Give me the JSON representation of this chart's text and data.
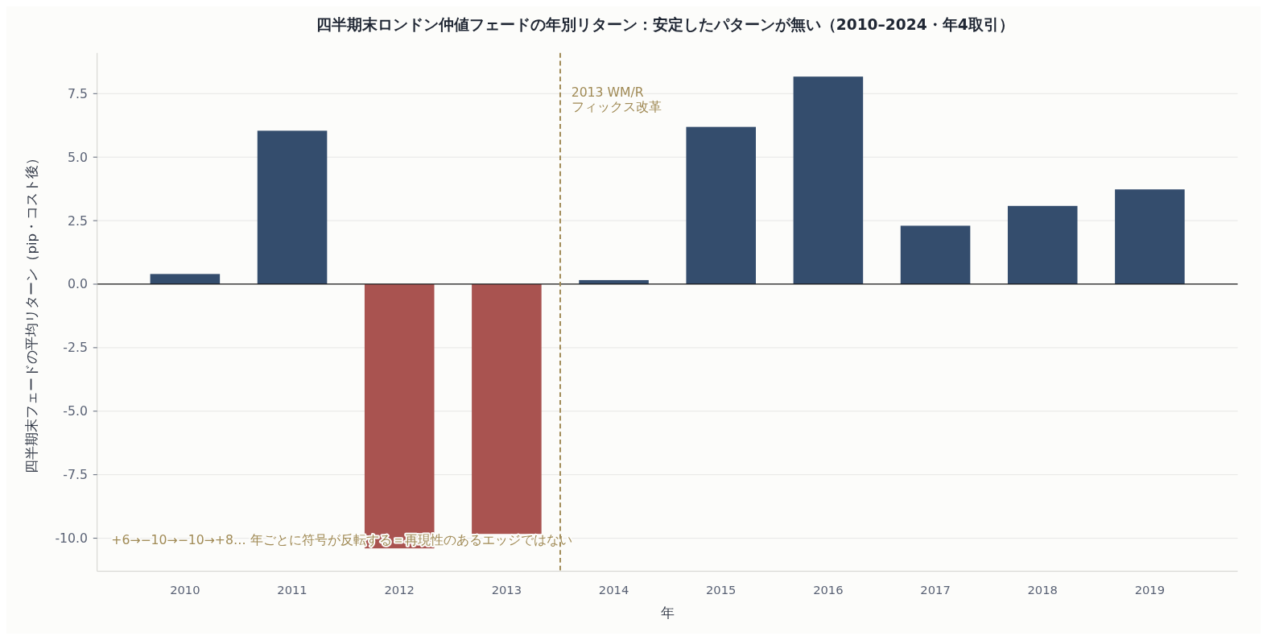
{
  "chart_data": {
    "type": "bar",
    "title": "四半期末ロンドン仲値フェードの年別リターン：安定したパターンが無い（2010–2024・年4取引）",
    "xlabel": "年",
    "ylabel": "四半期末フェードの平均リターン（pip・コスト後）",
    "x": [
      2010,
      2011,
      2012,
      2013,
      2014,
      2015,
      2016,
      2017,
      2018,
      2019
    ],
    "values": [
      0.4,
      6.04,
      -10.4,
      -9.83,
      0.16,
      6.19,
      8.17,
      2.3,
      3.08,
      3.73
    ],
    "colors": [
      "#344d6d",
      "#344d6d",
      "#a95350",
      "#a95350",
      "#344d6d",
      "#344d6d",
      "#344d6d",
      "#344d6d",
      "#344d6d",
      "#344d6d"
    ],
    "xlim": [
      2009.18,
      2019.82
    ],
    "xticks": [
      2010,
      2011,
      2012,
      2013,
      2014,
      2015,
      2016,
      2017,
      2018,
      2019
    ],
    "ylim": [
      -11.3,
      9.1
    ],
    "yticks": [
      {
        "value": -10,
        "label": "-10.0"
      },
      {
        "value": -7.5,
        "label": "-7.5"
      },
      {
        "value": -5,
        "label": "-5.0"
      },
      {
        "value": -2.5,
        "label": "-2.5"
      },
      {
        "value": 0,
        "label": "0.0"
      },
      {
        "value": 2.5,
        "label": "2.5"
      },
      {
        "value": 5,
        "label": "5.0"
      },
      {
        "value": 7.5,
        "label": "7.5"
      }
    ],
    "grid": "y",
    "ref_lines": [
      {
        "axis": "x",
        "value": 2013.5,
        "label": "2013 WM/R\nフィックス改革",
        "color": "#a08a55",
        "line_style": "dashed"
      }
    ],
    "annotations": [
      "+6→−10→−10→+8… 年ごとに符号が反転する＝再現性のあるエッジではない"
    ]
  }
}
